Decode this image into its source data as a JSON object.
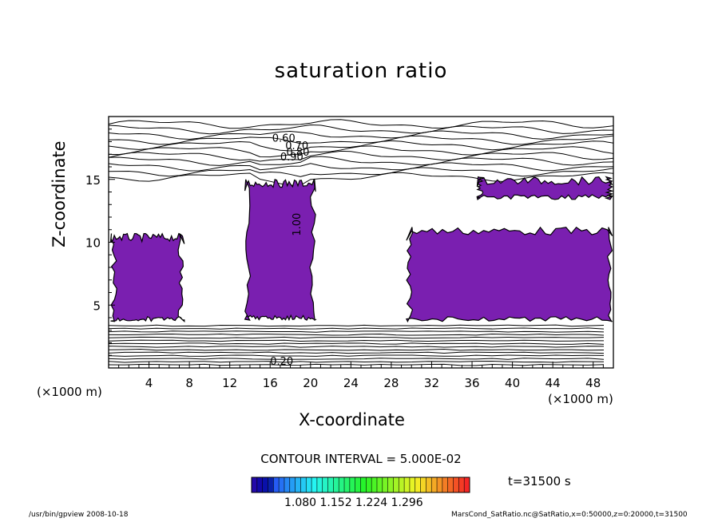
{
  "title": "saturation ratio",
  "axes": {
    "xlabel": "X-coordinate",
    "ylabel": "Z-coordinate",
    "x_unit_left": "(×1000 m)",
    "x_unit_right": "(×1000 m)"
  },
  "contour_interval": "CONTOUR INTERVAL = 5.000E-02",
  "timestamp": "t=31500 s",
  "footer_left": "/usr/bin/gpview  2008-10-18",
  "footer_right": "MarsCond_SatRatio.nc@SatRatio,x=0:50000,z=0:20000,t=31500",
  "colorbar": {
    "tick_labels": [
      "1.080",
      "1.152",
      "1.224",
      "1.296"
    ]
  },
  "chart_data": {
    "type": "contour",
    "title": "saturation ratio",
    "xlabel": "X-coordinate",
    "ylabel": "Z-coordinate",
    "xlim": [
      0,
      50
    ],
    "ylim": [
      0,
      20
    ],
    "x_ticks": [
      4,
      8,
      12,
      16,
      20,
      24,
      28,
      32,
      36,
      40,
      44,
      48
    ],
    "y_ticks": [
      5,
      10,
      15
    ],
    "contour_labels": [
      "0.60",
      "0.70",
      "0.80",
      "0.90",
      "1.00",
      "0.20"
    ],
    "fill_color": "#7a1fb0",
    "filled_regions": [
      {
        "x": [
          0.2,
          7.5
        ],
        "z": [
          3.7,
          10.7
        ]
      },
      {
        "x": [
          13.5,
          20.5
        ],
        "z": [
          3.8,
          15.0
        ]
      },
      {
        "x": [
          29.5,
          49.9
        ],
        "z": [
          3.7,
          11.2
        ]
      },
      {
        "x": [
          36.5,
          49.9
        ],
        "z": [
          13.4,
          15.2
        ]
      }
    ],
    "colorbar_range": [
      1.05,
      1.32
    ]
  }
}
